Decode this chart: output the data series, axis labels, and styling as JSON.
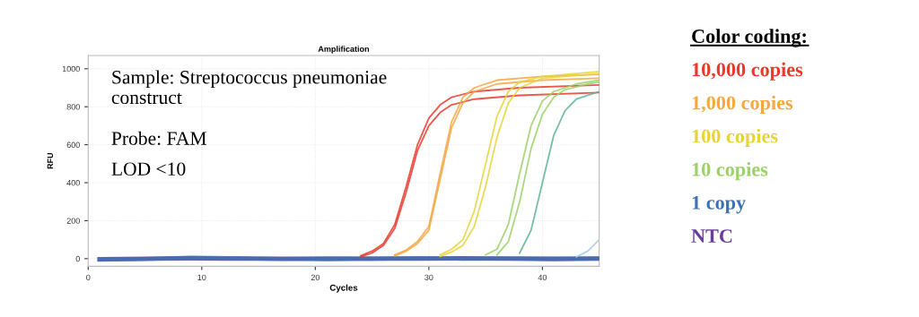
{
  "chart_data": {
    "type": "line",
    "title": "Amplification",
    "xlabel": "Cycles",
    "ylabel": "RFU",
    "xlim": [
      0,
      45
    ],
    "xticks": [
      0,
      10,
      20,
      30,
      40
    ],
    "ylim": [
      -40,
      1070
    ],
    "yticks": [
      0,
      200,
      400,
      600,
      800,
      1000
    ],
    "grid": true,
    "legend": "right",
    "legend_title": "Color coding:",
    "line_style": "solid",
    "marker": "none",
    "annotations": [
      "Sample: Streptococcus pneumoniae construct",
      "Probe: FAM",
      "LOD <10"
    ],
    "series": [
      {
        "name": "10,000 copies",
        "color": "#e8392a",
        "x": [
          24,
          25,
          26,
          27,
          28,
          29,
          30,
          31,
          32,
          34,
          38,
          45
        ],
        "values": [
          15,
          40,
          80,
          180,
          380,
          600,
          740,
          810,
          850,
          880,
          900,
          915
        ]
      },
      {
        "color": "#e8392a",
        "x": [
          24,
          25,
          26,
          27,
          28,
          29,
          30,
          31,
          32,
          34,
          38,
          45
        ],
        "values": [
          10,
          30,
          70,
          160,
          350,
          570,
          700,
          770,
          810,
          840,
          860,
          875
        ]
      },
      {
        "name": "1,000 copies",
        "color": "#f5a742",
        "x": [
          27,
          28,
          29,
          30,
          31,
          32,
          33,
          34,
          36,
          40,
          45
        ],
        "values": [
          20,
          45,
          90,
          170,
          450,
          720,
          850,
          900,
          940,
          960,
          970
        ]
      },
      {
        "color": "#f5a742",
        "x": [
          27,
          28,
          29,
          30,
          31,
          32,
          33,
          34,
          36,
          40,
          45
        ],
        "values": [
          15,
          40,
          80,
          150,
          420,
          690,
          820,
          880,
          920,
          940,
          950
        ]
      },
      {
        "name": "100 copies",
        "color": "#e6d33a",
        "x": [
          31,
          32,
          33,
          34,
          35,
          36,
          37,
          38,
          40,
          45
        ],
        "values": [
          20,
          50,
          100,
          250,
          500,
          750,
          880,
          930,
          960,
          985
        ]
      },
      {
        "color": "#e6d33a",
        "x": [
          31,
          32,
          33,
          34,
          35,
          36,
          37,
          38,
          40,
          45
        ],
        "values": [
          12,
          35,
          70,
          170,
          380,
          640,
          820,
          900,
          950,
          975
        ]
      },
      {
        "name": "10 copies",
        "color": "#9bd16a",
        "x": [
          35,
          36,
          37,
          38,
          39,
          40,
          41,
          43,
          45
        ],
        "values": [
          20,
          50,
          180,
          450,
          700,
          830,
          880,
          920,
          940
        ]
      },
      {
        "color": "#9bd16a",
        "x": [
          36,
          37,
          38,
          39,
          40,
          41,
          42,
          44,
          45
        ],
        "values": [
          20,
          90,
          300,
          580,
          760,
          850,
          890,
          920,
          930
        ]
      },
      {
        "color": "#5fb39a",
        "x": [
          38,
          39,
          40,
          41,
          42,
          43,
          45
        ],
        "values": [
          30,
          150,
          400,
          650,
          780,
          840,
          880
        ]
      },
      {
        "color": "#a8c8e0",
        "x": [
          43,
          44,
          45
        ],
        "values": [
          10,
          40,
          100
        ]
      },
      {
        "name": "1 copy",
        "color": "#3e70b4",
        "x": [
          1,
          5,
          9,
          13,
          17,
          21,
          25,
          29,
          33,
          37,
          41,
          45
        ],
        "values": [
          -5,
          -2,
          5,
          3,
          -2,
          2,
          0,
          3,
          0,
          2,
          0,
          2
        ]
      },
      {
        "name": "NTC",
        "color": "#6a3d9a",
        "x": [
          1,
          5,
          9,
          13,
          17,
          21,
          25,
          29,
          33,
          37,
          41,
          45
        ],
        "values": [
          -3,
          0,
          2,
          0,
          0,
          -2,
          0,
          0,
          2,
          0,
          -2,
          0
        ]
      }
    ]
  }
}
